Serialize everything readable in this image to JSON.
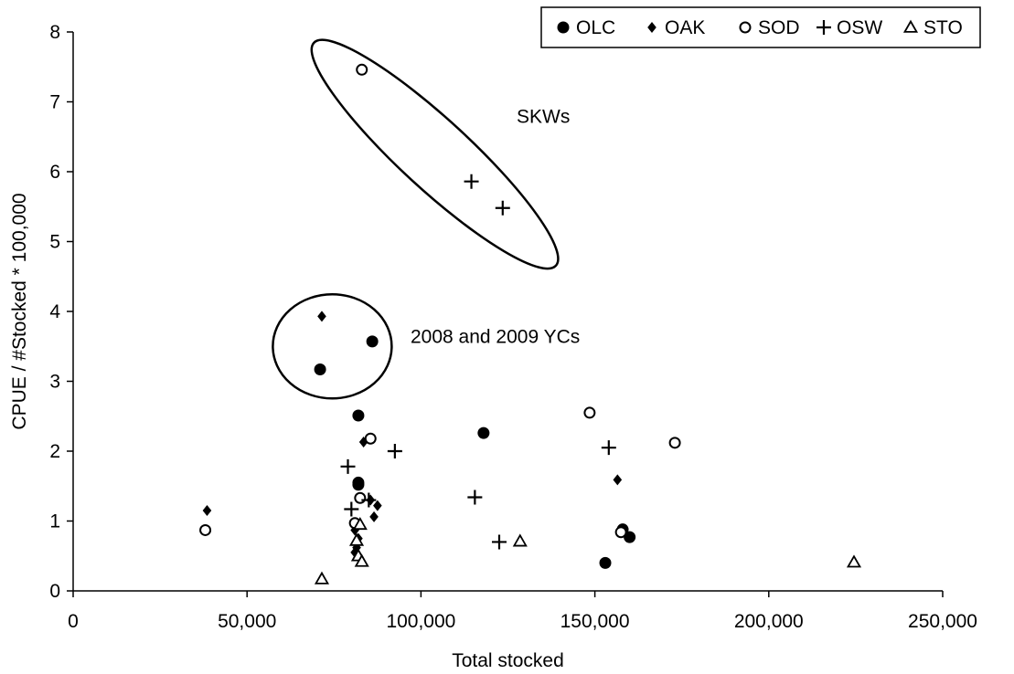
{
  "chart_data": {
    "type": "scatter",
    "xlabel": "Total stocked",
    "ylabel": "CPUE / #Stocked * 100,000",
    "xlim": [
      0,
      250000
    ],
    "ylim": [
      0,
      8
    ],
    "x_ticks": [
      0,
      50000,
      100000,
      150000,
      200000,
      250000
    ],
    "x_tick_labels": [
      "0",
      "50,000",
      "100,000",
      "150,000",
      "200,000",
      "250,000"
    ],
    "y_ticks": [
      0,
      1,
      2,
      3,
      4,
      5,
      6,
      7,
      8
    ],
    "y_tick_labels": [
      "0",
      "1",
      "2",
      "3",
      "4",
      "5",
      "6",
      "7",
      "8"
    ],
    "grid": false,
    "legend_position": "top-right",
    "series": [
      {
        "name": "OLC",
        "marker": "filled-circle",
        "color": "#000000",
        "points": [
          {
            "x": 71000,
            "y": 3.17
          },
          {
            "x": 86000,
            "y": 3.57
          },
          {
            "x": 82000,
            "y": 2.51
          },
          {
            "x": 118000,
            "y": 2.26
          },
          {
            "x": 82000,
            "y": 1.55
          },
          {
            "x": 82000,
            "y": 1.52
          },
          {
            "x": 158000,
            "y": 0.88
          },
          {
            "x": 160000,
            "y": 0.77
          },
          {
            "x": 153000,
            "y": 0.4
          }
        ]
      },
      {
        "name": "OAK",
        "marker": "filled-diamond",
        "color": "#000000",
        "points": [
          {
            "x": 71500,
            "y": 3.93
          },
          {
            "x": 83500,
            "y": 2.13
          },
          {
            "x": 38500,
            "y": 1.15
          },
          {
            "x": 85500,
            "y": 1.3
          },
          {
            "x": 87500,
            "y": 1.22
          },
          {
            "x": 86500,
            "y": 1.06
          },
          {
            "x": 156500,
            "y": 1.59
          },
          {
            "x": 81000,
            "y": 0.87
          },
          {
            "x": 82000,
            "y": 0.75
          },
          {
            "x": 81500,
            "y": 0.62
          },
          {
            "x": 81000,
            "y": 0.55
          }
        ]
      },
      {
        "name": "SOD",
        "marker": "open-circle",
        "color": "#000000",
        "points": [
          {
            "x": 83000,
            "y": 7.46
          },
          {
            "x": 148500,
            "y": 2.55
          },
          {
            "x": 173000,
            "y": 2.12
          },
          {
            "x": 85500,
            "y": 2.18
          },
          {
            "x": 38000,
            "y": 0.87
          },
          {
            "x": 82500,
            "y": 1.33
          },
          {
            "x": 81000,
            "y": 0.97
          },
          {
            "x": 157500,
            "y": 0.84
          }
        ]
      },
      {
        "name": "OSW",
        "marker": "plus",
        "color": "#000000",
        "points": [
          {
            "x": 114500,
            "y": 5.86
          },
          {
            "x": 123500,
            "y": 5.48
          },
          {
            "x": 92500,
            "y": 2.0
          },
          {
            "x": 154000,
            "y": 2.05
          },
          {
            "x": 79000,
            "y": 1.78
          },
          {
            "x": 115500,
            "y": 1.34
          },
          {
            "x": 85000,
            "y": 1.3
          },
          {
            "x": 80000,
            "y": 1.17
          },
          {
            "x": 122500,
            "y": 0.7
          }
        ]
      },
      {
        "name": "STO",
        "marker": "open-triangle",
        "color": "#000000",
        "points": [
          {
            "x": 71500,
            "y": 0.17
          },
          {
            "x": 128500,
            "y": 0.71
          },
          {
            "x": 224500,
            "y": 0.41
          },
          {
            "x": 82500,
            "y": 0.95
          },
          {
            "x": 81500,
            "y": 0.72
          },
          {
            "x": 82000,
            "y": 0.5
          },
          {
            "x": 83000,
            "y": 0.42
          }
        ]
      }
    ],
    "annotations": [
      {
        "text": "SKWs",
        "x": 127500,
        "y": 6.7
      },
      {
        "text": "2008 and 2009 YCs",
        "x": 97000,
        "y": 3.55
      }
    ],
    "ellipses": [
      {
        "cx": 104000,
        "cy": 6.25,
        "rx": 1.42,
        "ry": 0.29,
        "angle": 0.745
      },
      {
        "cx": 74500,
        "cy": 3.5,
        "rx": 1.05,
        "ry": 0.75,
        "angle": 0.0
      }
    ]
  }
}
